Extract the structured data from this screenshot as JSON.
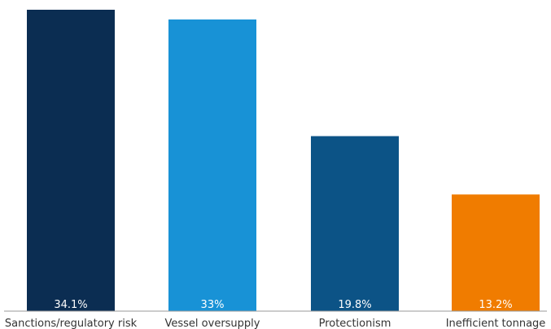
{
  "chart_data": {
    "type": "bar",
    "categories": [
      "Sanctions/regulatory risk",
      "Vessel oversupply",
      "Protectionism",
      "Inefficient tonnage"
    ],
    "values": [
      34.1,
      33,
      19.8,
      13.2
    ],
    "data_labels": [
      "34.1%",
      "33%",
      "19.8%",
      "13.2%"
    ],
    "colors": [
      "#0b2d52",
      "#1892d6",
      "#0c5386",
      "#f07c00"
    ],
    "title": "",
    "xlabel": "",
    "ylabel": "",
    "ylim": [
      0,
      34.1
    ],
    "grid": false,
    "legend": "none"
  }
}
